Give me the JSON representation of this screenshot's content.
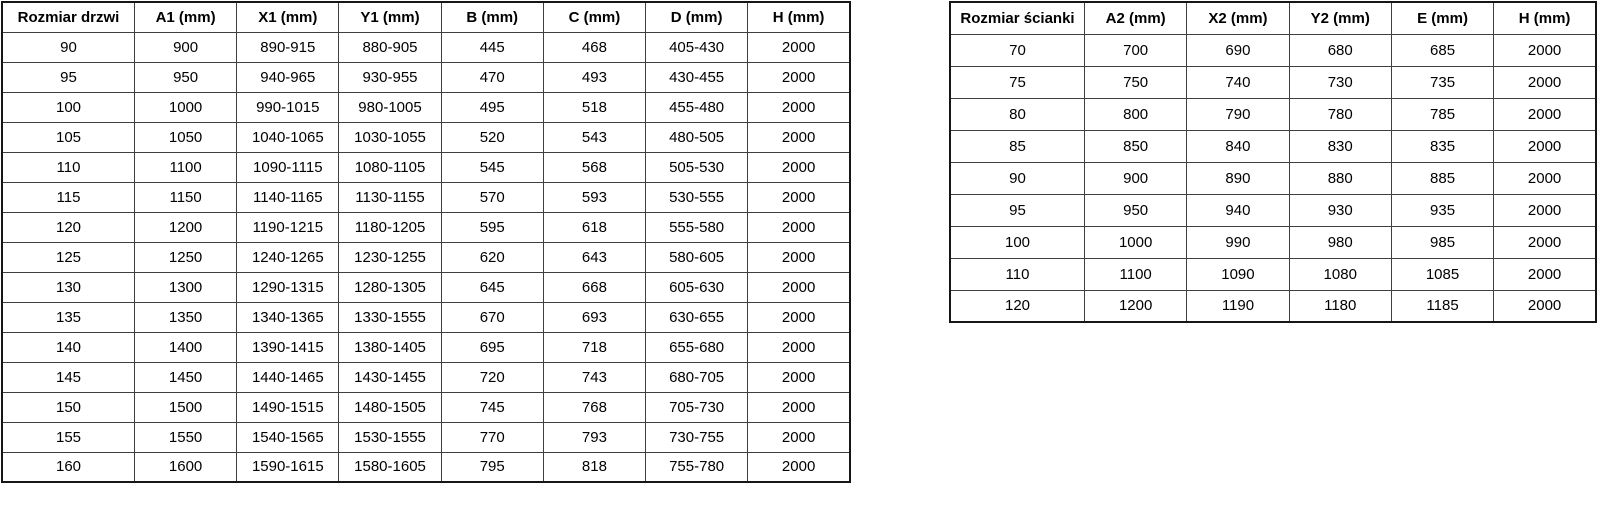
{
  "colors": {
    "background": "#ffffff",
    "text": "#000000",
    "inner_border": "#3f3f3f",
    "outer_border": "#161616"
  },
  "tables": {
    "doors": {
      "name": "door-sizes-table",
      "headers": [
        "Rozmiar drzwi",
        "A1 (mm)",
        "X1 (mm)",
        "Y1 (mm)",
        "B (mm)",
        "C (mm)",
        "D (mm)",
        "H (mm)"
      ],
      "rows": [
        [
          "90",
          "900",
          "890-915",
          "880-905",
          "445",
          "468",
          "405-430",
          "2000"
        ],
        [
          "95",
          "950",
          "940-965",
          "930-955",
          "470",
          "493",
          "430-455",
          "2000"
        ],
        [
          "100",
          "1000",
          "990-1015",
          "980-1005",
          "495",
          "518",
          "455-480",
          "2000"
        ],
        [
          "105",
          "1050",
          "1040-1065",
          "1030-1055",
          "520",
          "543",
          "480-505",
          "2000"
        ],
        [
          "110",
          "1100",
          "1090-1115",
          "1080-1105",
          "545",
          "568",
          "505-530",
          "2000"
        ],
        [
          "115",
          "1150",
          "1140-1165",
          "1130-1155",
          "570",
          "593",
          "530-555",
          "2000"
        ],
        [
          "120",
          "1200",
          "1190-1215",
          "1180-1205",
          "595",
          "618",
          "555-580",
          "2000"
        ],
        [
          "125",
          "1250",
          "1240-1265",
          "1230-1255",
          "620",
          "643",
          "580-605",
          "2000"
        ],
        [
          "130",
          "1300",
          "1290-1315",
          "1280-1305",
          "645",
          "668",
          "605-630",
          "2000"
        ],
        [
          "135",
          "1350",
          "1340-1365",
          "1330-1555",
          "670",
          "693",
          "630-655",
          "2000"
        ],
        [
          "140",
          "1400",
          "1390-1415",
          "1380-1405",
          "695",
          "718",
          "655-680",
          "2000"
        ],
        [
          "145",
          "1450",
          "1440-1465",
          "1430-1455",
          "720",
          "743",
          "680-705",
          "2000"
        ],
        [
          "150",
          "1500",
          "1490-1515",
          "1480-1505",
          "745",
          "768",
          "705-730",
          "2000"
        ],
        [
          "155",
          "1550",
          "1540-1565",
          "1530-1555",
          "770",
          "793",
          "730-755",
          "2000"
        ],
        [
          "160",
          "1600",
          "1590-1615",
          "1580-1605",
          "795",
          "818",
          "755-780",
          "2000"
        ]
      ]
    },
    "walls": {
      "name": "wall-sizes-table",
      "headers": [
        "Rozmiar ścianki",
        "A2 (mm)",
        "X2 (mm)",
        "Y2 (mm)",
        "E (mm)",
        "H (mm)"
      ],
      "rows": [
        [
          "70",
          "700",
          "690",
          "680",
          "685",
          "2000"
        ],
        [
          "75",
          "750",
          "740",
          "730",
          "735",
          "2000"
        ],
        [
          "80",
          "800",
          "790",
          "780",
          "785",
          "2000"
        ],
        [
          "85",
          "850",
          "840",
          "830",
          "835",
          "2000"
        ],
        [
          "90",
          "900",
          "890",
          "880",
          "885",
          "2000"
        ],
        [
          "95",
          "950",
          "940",
          "930",
          "935",
          "2000"
        ],
        [
          "100",
          "1000",
          "990",
          "980",
          "985",
          "2000"
        ],
        [
          "110",
          "1100",
          "1090",
          "1080",
          "1085",
          "2000"
        ],
        [
          "120",
          "1200",
          "1190",
          "1180",
          "1185",
          "2000"
        ]
      ]
    }
  }
}
